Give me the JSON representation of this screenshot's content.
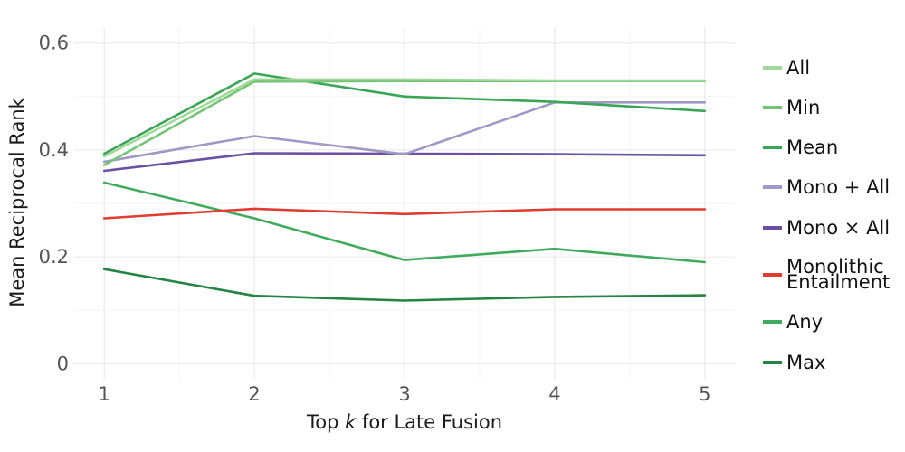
{
  "chart_data": {
    "type": "line",
    "title": "",
    "xlabel_prefix": "Top ",
    "xlabel_var": "k",
    "xlabel_suffix": " for Late Fusion",
    "ylabel": "Mean Reciprocal Rank",
    "x": [
      1,
      2,
      3,
      4,
      5
    ],
    "x_ticks": [
      "1",
      "2",
      "3",
      "4",
      "5"
    ],
    "xlim": [
      0.8,
      5.2
    ],
    "ylim": [
      -0.03,
      0.63
    ],
    "y_ticks": [
      {
        "value": 0,
        "label": "0"
      },
      {
        "value": 0.2,
        "label": "0.2"
      },
      {
        "value": 0.4,
        "label": "0.4"
      },
      {
        "value": 0.6,
        "label": "0.6"
      }
    ],
    "grid": true,
    "legend_position": "right",
    "series": [
      {
        "name": "Max",
        "color": "#238443",
        "values": [
          0.177,
          0.127,
          0.118,
          0.125,
          0.128
        ]
      },
      {
        "name": "Any",
        "color": "#41ab5d",
        "values": [
          0.339,
          0.272,
          0.194,
          0.215,
          0.19
        ]
      },
      {
        "name": "Monolithic Entailment",
        "color": "#e03c31",
        "values": [
          0.272,
          0.29,
          0.28,
          0.289,
          0.289
        ]
      },
      {
        "name": "Mono × All",
        "color": "#6a51a3",
        "values": [
          0.361,
          0.394,
          0.393,
          0.392,
          0.39
        ]
      },
      {
        "name": "Mono + All",
        "color": "#9e9ac8",
        "values": [
          0.378,
          0.426,
          0.392,
          0.489,
          0.489
        ]
      },
      {
        "name": "Mean",
        "color": "#3aa655",
        "values": [
          0.393,
          0.543,
          0.5,
          0.49,
          0.473
        ]
      },
      {
        "name": "Min",
        "color": "#74c476",
        "values": [
          0.372,
          0.528,
          0.529,
          0.529,
          0.529
        ]
      },
      {
        "name": "All",
        "color": "#a1d99b",
        "values": [
          0.388,
          0.532,
          0.532,
          0.53,
          0.53
        ]
      }
    ],
    "legend": [
      {
        "label_lines": [
          "All"
        ],
        "color": "#a1d99b"
      },
      {
        "label_lines": [
          "Min"
        ],
        "color": "#74c476"
      },
      {
        "label_lines": [
          "Mean"
        ],
        "color": "#3aa655"
      },
      {
        "label_lines": [
          "Mono + All"
        ],
        "color": "#9e9ac8"
      },
      {
        "label_lines": [
          "Mono × All"
        ],
        "color": "#6a51a3"
      },
      {
        "label_lines": [
          "Monolithic",
          "Entailment"
        ],
        "color": "#e03c31"
      },
      {
        "label_lines": [
          "Any"
        ],
        "color": "#41ab5d"
      },
      {
        "label_lines": [
          "Max"
        ],
        "color": "#238443"
      }
    ]
  }
}
